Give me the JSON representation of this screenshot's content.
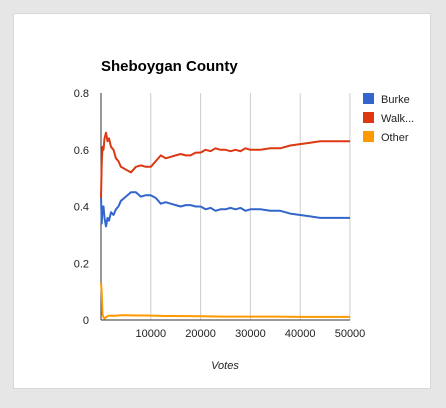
{
  "chart_data": {
    "type": "line",
    "title": "Sheboygan County",
    "xlabel": "Votes",
    "ylabel": "",
    "xlim": [
      0,
      50000
    ],
    "ylim": [
      0,
      0.8
    ],
    "x_ticks": [
      10000,
      20000,
      30000,
      40000,
      50000
    ],
    "x_tick_labels": [
      "10000",
      "20000",
      "30000",
      "40000",
      "50000"
    ],
    "y_ticks": [
      0,
      0.2,
      0.4,
      0.6,
      0.8
    ],
    "y_tick_labels": [
      "0",
      "0.2",
      "0.4",
      "0.6",
      "0.8"
    ],
    "grid": "vertical",
    "legend_position": "right",
    "series": [
      {
        "name": "Burke",
        "color": "#3366cc",
        "x": [
          0,
          150,
          300,
          500,
          700,
          1000,
          1300,
          1600,
          2000,
          2500,
          3000,
          3500,
          4000,
          5000,
          6000,
          7000,
          8000,
          9000,
          10000,
          11000,
          12000,
          13000,
          14000,
          15000,
          16000,
          17000,
          18000,
          19000,
          20000,
          21000,
          22000,
          23000,
          24000,
          25000,
          26000,
          27000,
          28000,
          29000,
          30000,
          32000,
          34000,
          36000,
          38000,
          40000,
          42000,
          44000,
          46000,
          48000,
          50000
        ],
        "y": [
          0.44,
          0.34,
          0.4,
          0.4,
          0.36,
          0.33,
          0.36,
          0.35,
          0.38,
          0.37,
          0.39,
          0.4,
          0.42,
          0.435,
          0.45,
          0.45,
          0.435,
          0.44,
          0.44,
          0.43,
          0.41,
          0.415,
          0.41,
          0.405,
          0.4,
          0.405,
          0.405,
          0.4,
          0.4,
          0.39,
          0.395,
          0.385,
          0.39,
          0.39,
          0.395,
          0.39,
          0.395,
          0.385,
          0.39,
          0.39,
          0.385,
          0.385,
          0.375,
          0.37,
          0.365,
          0.36,
          0.36,
          0.36,
          0.36
        ]
      },
      {
        "name": "Walk...",
        "color": "#dc3912",
        "x": [
          0,
          150,
          300,
          500,
          700,
          1000,
          1300,
          1600,
          2000,
          2500,
          3000,
          3500,
          4000,
          5000,
          6000,
          7000,
          8000,
          9000,
          10000,
          11000,
          12000,
          13000,
          14000,
          15000,
          16000,
          17000,
          18000,
          19000,
          20000,
          21000,
          22000,
          23000,
          24000,
          25000,
          26000,
          27000,
          28000,
          29000,
          30000,
          32000,
          34000,
          36000,
          38000,
          40000,
          42000,
          44000,
          46000,
          48000,
          50000
        ],
        "y": [
          0.43,
          0.55,
          0.61,
          0.6,
          0.64,
          0.66,
          0.63,
          0.64,
          0.61,
          0.6,
          0.57,
          0.56,
          0.54,
          0.53,
          0.52,
          0.54,
          0.545,
          0.54,
          0.54,
          0.56,
          0.58,
          0.57,
          0.575,
          0.58,
          0.585,
          0.58,
          0.58,
          0.59,
          0.59,
          0.6,
          0.595,
          0.605,
          0.6,
          0.6,
          0.595,
          0.6,
          0.595,
          0.605,
          0.6,
          0.6,
          0.605,
          0.605,
          0.615,
          0.62,
          0.625,
          0.63,
          0.63,
          0.63,
          0.63
        ]
      },
      {
        "name": "Other",
        "color": "#ff9900",
        "x": [
          0,
          150,
          300,
          500,
          700,
          1000,
          1500,
          2000,
          3000,
          4000,
          5000,
          7000,
          9000,
          11000,
          13000,
          15000,
          20000,
          25000,
          30000,
          35000,
          40000,
          45000,
          50000
        ],
        "y": [
          0.13,
          0.1,
          0.02,
          0.01,
          0.005,
          0.01,
          0.015,
          0.015,
          0.015,
          0.017,
          0.017,
          0.016,
          0.016,
          0.015,
          0.014,
          0.014,
          0.013,
          0.012,
          0.012,
          0.012,
          0.011,
          0.011,
          0.011
        ]
      }
    ]
  }
}
